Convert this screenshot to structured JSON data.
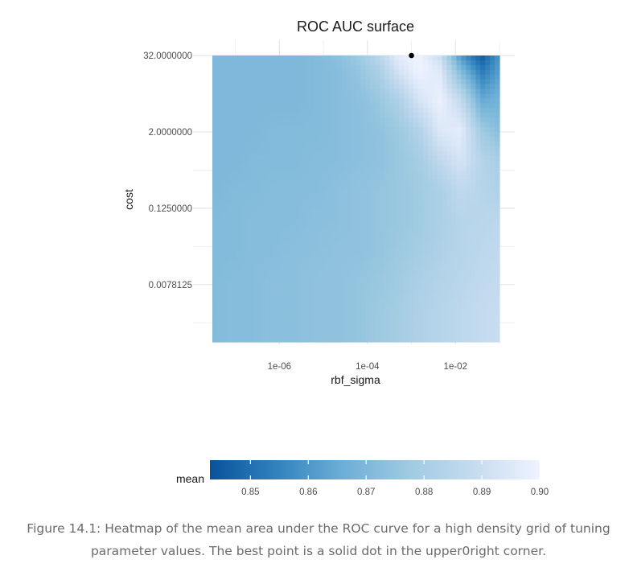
{
  "chart_data": {
    "type": "heatmap",
    "title": "ROC AUC surface",
    "xlabel": "rbf_sigma",
    "ylabel": "cost",
    "x_scale": "log10",
    "y_scale": "log2",
    "xlim": [
      3e-08,
      0.1
    ],
    "ylim": [
      0.0009765625,
      32
    ],
    "x_ticks": [
      {
        "value": 1e-06,
        "label": "1e-06"
      },
      {
        "value": 0.0001,
        "label": "1e-04"
      },
      {
        "value": 0.01,
        "label": "1e-02"
      }
    ],
    "y_ticks": [
      {
        "value": 32,
        "label": "32.0000000"
      },
      {
        "value": 2,
        "label": "2.0000000"
      },
      {
        "value": 0.125,
        "label": "0.1250000"
      },
      {
        "value": 0.0078125,
        "label": "0.0078125"
      }
    ],
    "grid": true,
    "fill_variable": "mean",
    "fill_range": [
      0.843,
      0.9
    ],
    "colorscale": [
      "#08519c",
      "#3182bd",
      "#6baed6",
      "#9ecae1",
      "#c6dbef",
      "#eff3ff"
    ],
    "legend": {
      "title": "mean",
      "position": "bottom",
      "breaks": [
        0.85,
        0.86,
        0.87,
        0.88,
        0.89,
        0.9
      ],
      "labels": [
        "0.85",
        "0.86",
        "0.87",
        "0.88",
        "0.89",
        "0.90"
      ]
    },
    "best_point": {
      "rbf_sigma": 0.001,
      "cost": 32
    },
    "x_grid_values": [
      3e-08,
      9e-08,
      2.6e-07,
      7.7e-07,
      2.3e-06,
      6.8e-06,
      2e-05,
      6e-05,
      0.00018,
      0.00052,
      0.0015,
      0.0045,
      0.013,
      0.04,
      0.1
    ],
    "y_grid_values": [
      0.0009765625,
      0.0029,
      0.0088,
      0.026,
      0.079,
      0.24,
      0.71,
      2.1,
      6.3,
      19,
      32
    ],
    "values": [
      [
        0.871,
        0.872,
        0.872,
        0.873,
        0.873,
        0.874,
        0.874,
        0.875,
        0.877,
        0.879,
        0.882,
        0.884,
        0.886,
        0.888,
        0.889
      ],
      [
        0.871,
        0.872,
        0.872,
        0.873,
        0.873,
        0.874,
        0.874,
        0.875,
        0.877,
        0.879,
        0.882,
        0.884,
        0.886,
        0.888,
        0.889
      ],
      [
        0.871,
        0.872,
        0.872,
        0.873,
        0.873,
        0.874,
        0.874,
        0.875,
        0.876,
        0.878,
        0.881,
        0.883,
        0.885,
        0.887,
        0.888
      ],
      [
        0.871,
        0.871,
        0.872,
        0.872,
        0.873,
        0.873,
        0.874,
        0.874,
        0.875,
        0.877,
        0.879,
        0.882,
        0.884,
        0.886,
        0.887
      ],
      [
        0.871,
        0.871,
        0.872,
        0.872,
        0.872,
        0.873,
        0.873,
        0.874,
        0.875,
        0.876,
        0.878,
        0.881,
        0.884,
        0.885,
        0.886
      ],
      [
        0.87,
        0.871,
        0.871,
        0.872,
        0.872,
        0.872,
        0.873,
        0.874,
        0.875,
        0.876,
        0.878,
        0.881,
        0.887,
        0.884,
        0.882
      ],
      [
        0.87,
        0.87,
        0.871,
        0.871,
        0.871,
        0.872,
        0.872,
        0.873,
        0.874,
        0.876,
        0.879,
        0.887,
        0.893,
        0.884,
        0.88
      ],
      [
        0.87,
        0.87,
        0.87,
        0.871,
        0.871,
        0.871,
        0.872,
        0.873,
        0.874,
        0.877,
        0.883,
        0.895,
        0.897,
        0.878,
        0.872
      ],
      [
        0.87,
        0.87,
        0.87,
        0.87,
        0.87,
        0.871,
        0.872,
        0.873,
        0.876,
        0.882,
        0.893,
        0.899,
        0.888,
        0.865,
        0.868
      ],
      [
        0.87,
        0.87,
        0.87,
        0.87,
        0.87,
        0.871,
        0.872,
        0.875,
        0.881,
        0.893,
        0.9,
        0.895,
        0.87,
        0.852,
        0.862
      ],
      [
        0.87,
        0.87,
        0.87,
        0.87,
        0.87,
        0.871,
        0.873,
        0.877,
        0.885,
        0.897,
        0.9,
        0.89,
        0.86,
        0.845,
        0.86
      ]
    ]
  },
  "caption": "Figure 14.1: Heatmap of the mean area under the ROC curve for a high density grid of tuning parameter values. The best point is a solid dot in the upper0right corner."
}
